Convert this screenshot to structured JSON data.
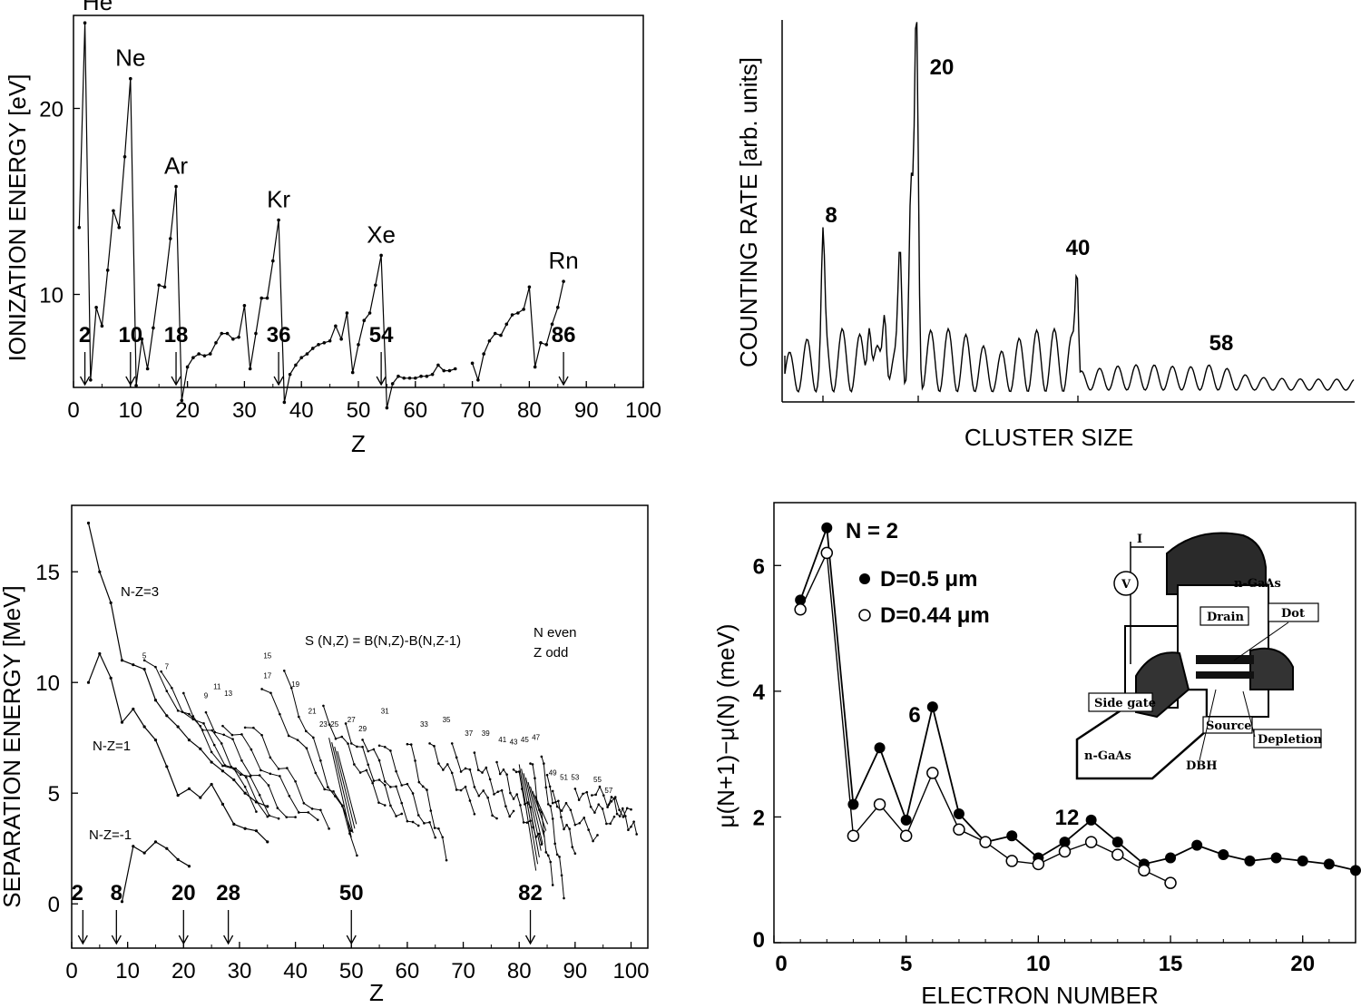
{
  "chart_data": [
    {
      "type": "line",
      "xlabel": "Z",
      "ylabel": "IONIZATION ENERGY [eV]",
      "xlim": [
        0,
        100
      ],
      "ylim": [
        5,
        25
      ],
      "xticks": [
        "0",
        "10",
        "20",
        "30",
        "40",
        "50",
        "60",
        "70",
        "80",
        "90",
        "100"
      ],
      "yticks": [
        "10",
        "20"
      ],
      "series": [
        {
          "x": [
            1,
            2,
            3,
            4,
            5,
            6,
            7,
            8,
            9,
            10,
            11,
            12,
            13,
            14,
            15,
            16,
            17,
            18,
            19,
            20,
            21,
            22,
            23,
            24,
            25,
            26,
            27,
            28,
            29,
            30,
            31,
            32,
            33,
            34,
            35,
            36,
            37,
            38,
            39,
            40,
            41,
            42,
            43,
            44,
            45,
            46,
            47,
            48,
            49,
            50,
            51,
            52,
            53,
            54,
            55,
            56,
            57,
            58,
            59,
            60,
            61,
            62,
            63,
            64,
            65,
            66,
            67
          ],
          "y": [
            13.6,
            24.6,
            5.4,
            9.3,
            8.3,
            11.3,
            14.5,
            13.6,
            17.4,
            21.6,
            5.1,
            7.6,
            6.0,
            8.2,
            10.5,
            10.4,
            13.0,
            15.8,
            4.3,
            6.1,
            6.6,
            6.8,
            6.7,
            6.8,
            7.4,
            7.9,
            7.9,
            7.6,
            7.7,
            9.4,
            6.0,
            7.9,
            9.8,
            9.8,
            11.8,
            14.0,
            4.2,
            5.7,
            6.2,
            6.6,
            6.8,
            7.1,
            7.3,
            7.4,
            7.5,
            8.3,
            7.6,
            9.0,
            5.8,
            7.3,
            8.6,
            9.0,
            10.5,
            12.1,
            3.9,
            5.2,
            5.6,
            5.5,
            5.5,
            5.5,
            5.6,
            5.6,
            5.7,
            6.2,
            5.9,
            5.9,
            6.0
          ]
        },
        {
          "x": [
            70,
            71,
            72,
            73,
            74,
            75,
            76,
            77,
            78,
            79,
            80,
            81,
            82,
            83,
            84,
            85,
            86
          ],
          "y": [
            6.3,
            5.4,
            6.8,
            7.5,
            7.9,
            7.8,
            8.4,
            8.9,
            9.0,
            9.2,
            10.4,
            6.1,
            7.4,
            7.3,
            8.4,
            9.3,
            10.7
          ]
        }
      ],
      "annotations": [
        {
          "text": "He",
          "x": 2,
          "y": 24.6
        },
        {
          "text": "Ne",
          "x": 10,
          "y": 21.6
        },
        {
          "text": "Ar",
          "x": 18,
          "y": 15.8
        },
        {
          "text": "Kr",
          "x": 36,
          "y": 14.0
        },
        {
          "text": "Xe",
          "x": 54,
          "y": 12.1
        },
        {
          "text": "Rn",
          "x": 86,
          "y": 10.7
        }
      ],
      "magic_arrows": [
        "2",
        "10",
        "18",
        "36",
        "54",
        "86"
      ],
      "grid": false
    },
    {
      "type": "line",
      "xlabel": "CLUSTER SIZE",
      "ylabel": "COUNTING RATE  [arb. units]",
      "annotations": [
        "8",
        "20",
        "40",
        "58"
      ],
      "grid": false
    },
    {
      "type": "line",
      "xlabel": "Z",
      "ylabel": "SEPARATION ENERGY [MeV]",
      "xlim": [
        0,
        103
      ],
      "ylim": [
        -2,
        18
      ],
      "xticks": [
        "0",
        "10",
        "20",
        "30",
        "40",
        "50",
        "60",
        "70",
        "80",
        "90",
        "100"
      ],
      "yticks": [
        "0",
        "5",
        "10",
        "15"
      ],
      "formula": "S (N,Z) = B(N,Z)-B(N,Z-1)",
      "note_line1": "N even",
      "note_line2": "Z odd",
      "series_labels": [
        "N-Z=3",
        "N-Z=1",
        "N-Z=-1"
      ],
      "curve_labels": [
        "5",
        "7",
        "9",
        "11",
        "13",
        "15",
        "17",
        "19",
        "21",
        "23",
        "25",
        "27",
        "29",
        "31",
        "33",
        "35",
        "37",
        "39",
        "41",
        "43",
        "45",
        "47",
        "49",
        "51",
        "53",
        "55",
        "57"
      ],
      "series": [
        {
          "name": "N-Z=3",
          "x": [
            3,
            5,
            7,
            9,
            11,
            13,
            15,
            17,
            19,
            21,
            23,
            25,
            27,
            29,
            31,
            33,
            35
          ],
          "y": [
            17.2,
            15.0,
            13.6,
            11.0,
            10.8,
            10.6,
            9.2,
            8.5,
            8.0,
            7.4,
            7.0,
            6.4,
            6.0,
            5.6,
            5.0,
            4.6,
            4.4
          ]
        },
        {
          "name": "N-Z=1",
          "x": [
            3,
            5,
            7,
            9,
            11,
            13,
            15,
            17,
            19,
            21,
            23,
            25,
            27,
            29,
            31,
            33,
            35
          ],
          "y": [
            10.0,
            11.3,
            10.2,
            8.2,
            8.8,
            8.0,
            7.4,
            6.2,
            4.9,
            5.2,
            4.8,
            5.4,
            4.5,
            3.6,
            3.4,
            3.3,
            2.8
          ]
        },
        {
          "name": "N-Z=-1",
          "x": [
            9,
            11,
            13,
            15,
            17,
            19,
            21
          ],
          "y": [
            0.1,
            2.6,
            2.3,
            2.8,
            2.5,
            2.0,
            1.7
          ]
        }
      ],
      "magic_arrows": [
        "2",
        "8",
        "20",
        "28",
        "50",
        "82"
      ],
      "grid": false
    },
    {
      "type": "line",
      "xlabel": "ELECTRON NUMBER",
      "ylabel": "μ(N+1)−μ(N)    (meV)",
      "xlim": [
        0,
        22
      ],
      "ylim": [
        0,
        7
      ],
      "xticks": [
        "0",
        "5",
        "10",
        "15",
        "20"
      ],
      "yticks": [
        "0",
        "2",
        "4",
        "6"
      ],
      "series": [
        {
          "name": "D=0.5 μm",
          "marker": "filled",
          "x": [
            1,
            2,
            3,
            4,
            5,
            6,
            7,
            8,
            9,
            10,
            11,
            12,
            13,
            14,
            15,
            16,
            17,
            18,
            19,
            20,
            21,
            22
          ],
          "y": [
            5.45,
            6.6,
            2.2,
            3.1,
            1.95,
            3.75,
            2.05,
            1.6,
            1.7,
            1.35,
            1.6,
            1.95,
            1.6,
            1.25,
            1.35,
            1.55,
            1.4,
            1.3,
            1.35,
            1.3,
            1.25,
            1.15
          ]
        },
        {
          "name": "D=0.44 μm",
          "marker": "open",
          "x": [
            1,
            2,
            3,
            4,
            5,
            6,
            7,
            8,
            9,
            10,
            11,
            12,
            13,
            14,
            15
          ],
          "y": [
            5.3,
            6.2,
            1.7,
            2.2,
            1.7,
            2.7,
            1.8,
            1.6,
            1.3,
            1.25,
            1.45,
            1.6,
            1.4,
            1.15,
            0.95
          ]
        }
      ],
      "annotations": [
        "N = 2",
        "6",
        "12"
      ],
      "legend": "top-left",
      "inset_labels": [
        "I",
        "V",
        "n-GaAs",
        "Drain",
        "Dot",
        "Side gate",
        "Source",
        "Depletion",
        "n-GaAs",
        "DBH"
      ],
      "grid": false
    }
  ]
}
